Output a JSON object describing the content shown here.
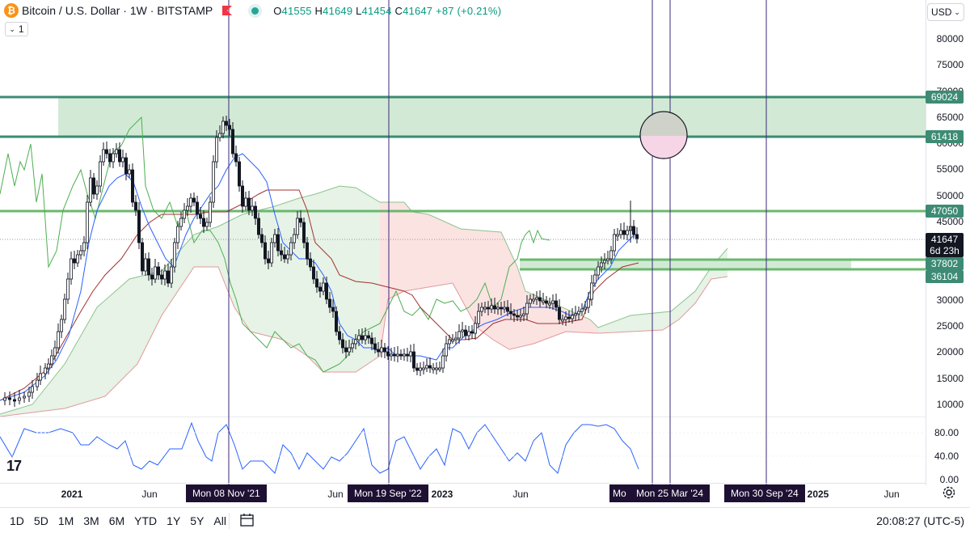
{
  "header": {
    "symbol": "Bitcoin / U.S. Dollar · 1W · BITSTAMP",
    "ohlc": {
      "o": "41555",
      "h": "41649",
      "l": "41454",
      "c": "41647",
      "change": "+87 (+0.21%)"
    },
    "interval_value": "1",
    "currency": "USD"
  },
  "price_scale": {
    "labels": [
      "80000",
      "75000",
      "70000",
      "65000",
      "60000",
      "55000",
      "50000",
      "45000",
      "40000",
      "35000",
      "30000",
      "25000",
      "20000",
      "15000",
      "10000"
    ],
    "tags": [
      {
        "value": "69024",
        "color": "#3d8b74"
      },
      {
        "value": "61418",
        "color": "#3d8b74"
      },
      {
        "value": "47050",
        "color": "#3d8b74"
      },
      {
        "value": "37802",
        "color": "#3d8b74"
      },
      {
        "value": "36104",
        "color": "#3d8b74"
      }
    ],
    "current": {
      "price": "41647",
      "countdown": "6d 23h"
    }
  },
  "oscillator": {
    "labels": [
      "80.00",
      "40.00",
      "0.00"
    ]
  },
  "time_axis": {
    "labels": [
      "2021",
      "Jun",
      "Jun",
      "2023",
      "Jun",
      "2025",
      "Jun"
    ],
    "tags": [
      "Mon 08 Nov '21",
      "Mon 19 Sep '22",
      "Mo",
      "Mon 25 Mar '24",
      "Mon 30 Sep '24"
    ]
  },
  "toolbar": {
    "timeframes": [
      "1D",
      "5D",
      "1M",
      "3M",
      "6M",
      "YTD",
      "1Y",
      "5Y",
      "All"
    ],
    "clock": "20:08:27 (UTC-5)"
  },
  "icons": [
    "bitcoin-icon",
    "flag-icon",
    "status-dot-icon",
    "chevron-down-icon",
    "tradingview-logo",
    "calendar-icon",
    "gear-icon"
  ],
  "colors": {
    "zone": "#d2ead5",
    "zone_line": "#3d8b74",
    "support_line": "#6bb86e",
    "kijun": "#a33030",
    "tenkan": "#2962ff",
    "lagging": "#4caf50",
    "vline": "#3b2a78",
    "osc": "#2962ff"
  }
}
